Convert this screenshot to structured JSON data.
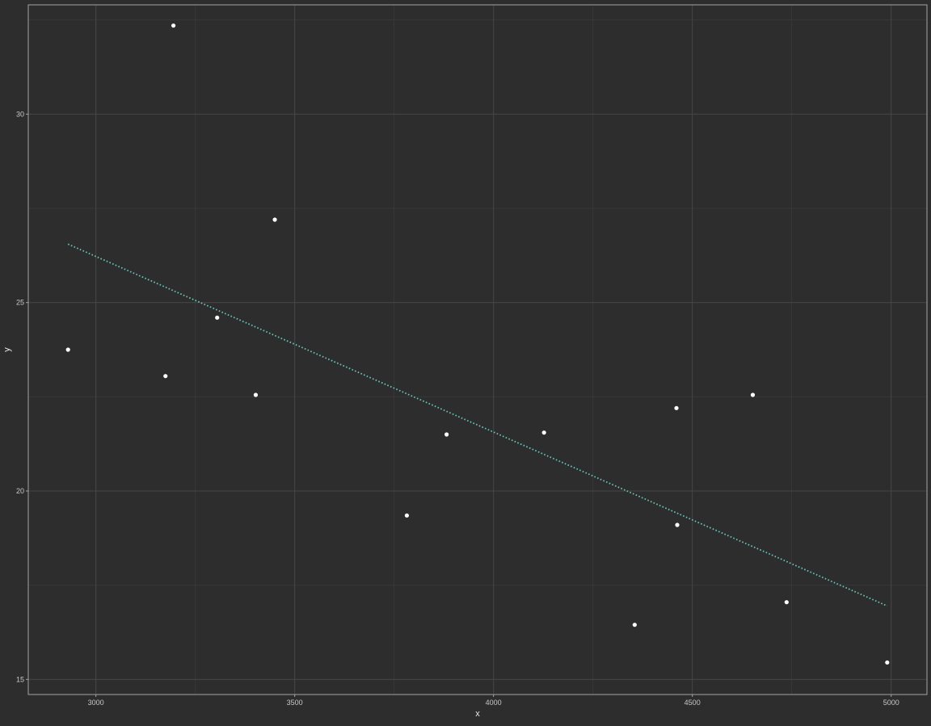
{
  "chart_data": {
    "type": "scatter",
    "title": "",
    "xlabel": "x",
    "ylabel": "y",
    "xlim": [
      2830,
      5090
    ],
    "ylim": [
      14.6,
      32.9
    ],
    "x_ticks": [
      3000,
      3500,
      4000,
      4500,
      5000
    ],
    "y_ticks": [
      15,
      20,
      25,
      30
    ],
    "x_tick_labels": [
      "3000",
      "3500",
      "4000",
      "4500",
      "5000"
    ],
    "y_tick_labels": [
      "15",
      "20",
      "25",
      "30"
    ],
    "x_minor_grid": [
      3250,
      3750,
      4250,
      4750
    ],
    "y_minor_grid": [
      17.5,
      22.5,
      27.5,
      32.5
    ],
    "grid": true,
    "legend": "none",
    "colors": {
      "background": "#2d2d2d",
      "panel": "#2d2d2d",
      "grid_major": "#454545",
      "grid_minor": "#3a3a3a",
      "panel_border": "#a3a3a3",
      "text": "#c8c8c8",
      "axis_title": "#e8e8e8",
      "points": "#ffffff",
      "trend": "#67c3b5"
    },
    "series": [
      {
        "type": "scatter",
        "x": [
          2930,
          3175,
          3195,
          3305,
          3402,
          3450,
          3782,
          3882,
          4127,
          4355,
          4460,
          4462,
          4652,
          4737,
          4990
        ],
        "y": [
          23.75,
          23.05,
          32.35,
          24.6,
          22.55,
          27.2,
          19.35,
          21.5,
          21.55,
          16.45,
          22.2,
          19.1,
          22.55,
          17.05,
          15.45
        ]
      },
      {
        "type": "line",
        "style": "dotted",
        "x": [
          2930,
          4990
        ],
        "y": [
          26.55,
          16.95
        ]
      }
    ]
  }
}
